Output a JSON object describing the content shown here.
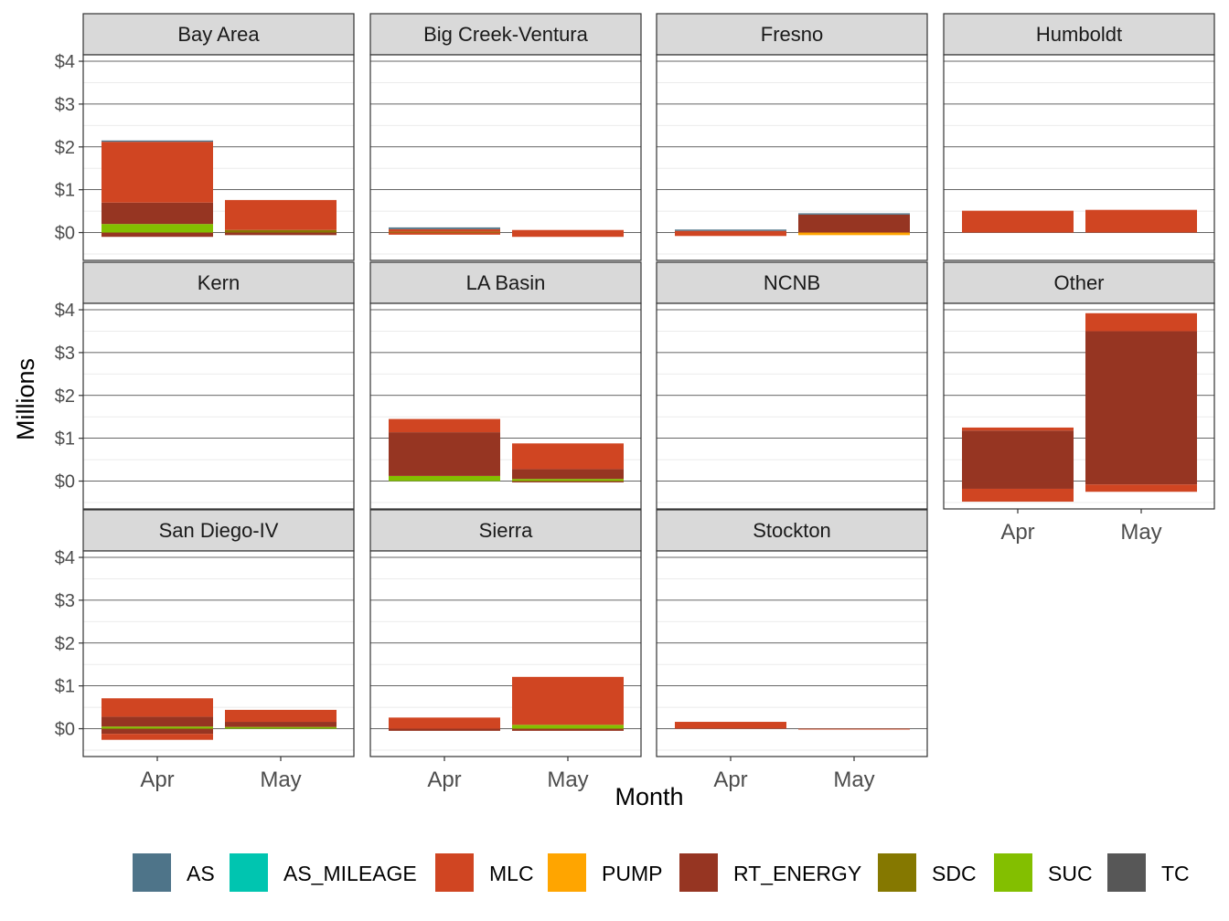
{
  "chart_data": {
    "type": "bar",
    "stacked": true,
    "facet_layout": "4 columns x 3 rows",
    "xlabel": "Month",
    "ylabel": "Millions",
    "categories": [
      "Apr",
      "May"
    ],
    "ylim": [
      -0.65,
      4.15
    ],
    "y_ticks": [
      0,
      1,
      2,
      3,
      4
    ],
    "y_tick_labels": [
      "$0",
      "$1",
      "$2",
      "$3",
      "$4"
    ],
    "grid": true,
    "legend_position": "bottom",
    "series_colors": {
      "AS": "#4e7489",
      "AS_MILEAGE": "#00c5b0",
      "MLC": "#d04522",
      "PUMP": "#ffa500",
      "RT_ENERGY": "#963522",
      "SDC": "#857800",
      "SUC": "#83bf00",
      "TC": "#575757"
    },
    "legend": [
      "AS",
      "AS_MILEAGE",
      "MLC",
      "PUMP",
      "RT_ENERGY",
      "SDC",
      "SUC",
      "TC"
    ],
    "panels": [
      {
        "name": "Bay Area",
        "bars": [
          {
            "month": "Apr",
            "segments": [
              {
                "series": "SUC",
                "value": 0.2
              },
              {
                "series": "RT_ENERGY",
                "value": 0.5
              },
              {
                "series": "MLC",
                "value": 1.42
              },
              {
                "series": "AS",
                "value": 0.03
              },
              {
                "series": "RT_ENERGY",
                "value": -0.1
              }
            ]
          },
          {
            "month": "May",
            "segments": [
              {
                "series": "SDC",
                "value": 0.06
              },
              {
                "series": "MLC",
                "value": 0.7
              },
              {
                "series": "RT_ENERGY",
                "value": -0.06
              }
            ]
          }
        ]
      },
      {
        "name": "Big Creek-Ventura",
        "bars": [
          {
            "month": "Apr",
            "segments": [
              {
                "series": "SDC",
                "value": 0.02
              },
              {
                "series": "MLC",
                "value": 0.06
              },
              {
                "series": "AS",
                "value": 0.04
              },
              {
                "series": "MLC",
                "value": -0.05
              }
            ]
          },
          {
            "month": "May",
            "segments": [
              {
                "series": "MLC",
                "value": 0.06
              },
              {
                "series": "MLC",
                "value": -0.1
              }
            ]
          }
        ]
      },
      {
        "name": "Fresno",
        "bars": [
          {
            "month": "Apr",
            "segments": [
              {
                "series": "MLC",
                "value": 0.04
              },
              {
                "series": "AS",
                "value": 0.03
              },
              {
                "series": "MLC",
                "value": -0.08
              }
            ]
          },
          {
            "month": "May",
            "segments": [
              {
                "series": "RT_ENERGY",
                "value": 0.42
              },
              {
                "series": "AS",
                "value": 0.03
              },
              {
                "series": "PUMP",
                "value": -0.06
              }
            ]
          }
        ]
      },
      {
        "name": "Humboldt",
        "bars": [
          {
            "month": "Apr",
            "segments": [
              {
                "series": "MLC",
                "value": 0.51
              }
            ]
          },
          {
            "month": "May",
            "segments": [
              {
                "series": "MLC",
                "value": 0.53
              }
            ]
          }
        ]
      },
      {
        "name": "Kern",
        "bars": []
      },
      {
        "name": "LA Basin",
        "bars": [
          {
            "month": "Apr",
            "segments": [
              {
                "series": "SUC",
                "value": 0.12
              },
              {
                "series": "RT_ENERGY",
                "value": 1.02
              },
              {
                "series": "MLC",
                "value": 0.31
              }
            ]
          },
          {
            "month": "May",
            "segments": [
              {
                "series": "SUC",
                "value": 0.05
              },
              {
                "series": "RT_ENERGY",
                "value": 0.23
              },
              {
                "series": "MLC",
                "value": 0.6
              },
              {
                "series": "RT_ENERGY",
                "value": -0.03
              }
            ]
          }
        ]
      },
      {
        "name": "NCNB",
        "bars": []
      },
      {
        "name": "Other",
        "bars": [
          {
            "month": "Apr",
            "segments": [
              {
                "series": "RT_ENERGY",
                "value": 1.18
              },
              {
                "series": "MLC",
                "value": 0.07
              },
              {
                "series": "RT_ENERGY",
                "value": -0.18
              },
              {
                "series": "MLC",
                "value": -0.3
              }
            ]
          },
          {
            "month": "May",
            "segments": [
              {
                "series": "RT_ENERGY",
                "value": 3.5
              },
              {
                "series": "MLC",
                "value": 0.42
              },
              {
                "series": "RT_ENERGY",
                "value": -0.08
              },
              {
                "series": "MLC",
                "value": -0.17
              }
            ]
          }
        ]
      },
      {
        "name": "San Diego-IV",
        "bars": [
          {
            "month": "Apr",
            "segments": [
              {
                "series": "SUC",
                "value": 0.05
              },
              {
                "series": "RT_ENERGY",
                "value": 0.23
              },
              {
                "series": "MLC",
                "value": 0.43
              },
              {
                "series": "RT_ENERGY",
                "value": -0.12
              },
              {
                "series": "MLC",
                "value": -0.14
              }
            ]
          },
          {
            "month": "May",
            "segments": [
              {
                "series": "SUC",
                "value": 0.04
              },
              {
                "series": "RT_ENERGY",
                "value": 0.12
              },
              {
                "series": "MLC",
                "value": 0.28
              }
            ]
          }
        ]
      },
      {
        "name": "Sierra",
        "bars": [
          {
            "month": "Apr",
            "segments": [
              {
                "series": "MLC",
                "value": 0.26
              },
              {
                "series": "RT_ENERGY",
                "value": -0.05
              }
            ]
          },
          {
            "month": "May",
            "segments": [
              {
                "series": "SUC",
                "value": 0.09
              },
              {
                "series": "MLC",
                "value": 1.12
              },
              {
                "series": "RT_ENERGY",
                "value": -0.05
              }
            ]
          }
        ]
      },
      {
        "name": "Stockton",
        "bars": [
          {
            "month": "Apr",
            "segments": [
              {
                "series": "MLC",
                "value": 0.16
              }
            ]
          },
          {
            "month": "May",
            "segments": [
              {
                "series": "MLC",
                "value": -0.02
              }
            ]
          }
        ]
      }
    ]
  }
}
